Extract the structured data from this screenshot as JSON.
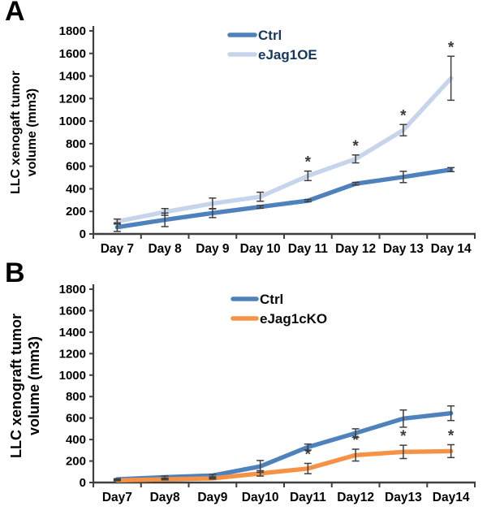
{
  "panels": [
    {
      "label": "A"
    },
    {
      "label": "B"
    }
  ],
  "chart_data": [
    {
      "type": "line",
      "title": "",
      "xlabel": "",
      "ylabel": "LLC xenogaft tumor volume (mm3)",
      "ylabel_lines": [
        "LLC xenogaft tumor",
        "volume (mm3)"
      ],
      "ylim": [
        0,
        1800
      ],
      "yticks": [
        0,
        200,
        400,
        600,
        800,
        1000,
        1200,
        1400,
        1600,
        1800
      ],
      "grid": false,
      "legend_position": "top-center",
      "sig_marker": "*",
      "categories": [
        "Day 7",
        "Day 8",
        "Day 9",
        "Day 10",
        "Day 11",
        "Day 12",
        "Day 13",
        "Day 14"
      ],
      "series": [
        {
          "name": "Ctrl",
          "color": "#4F81BD",
          "values": [
            60,
            125,
            185,
            240,
            295,
            445,
            505,
            570
          ],
          "errors": [
            38,
            60,
            40,
            12,
            10,
            12,
            50,
            18
          ],
          "sig_indexes": []
        },
        {
          "name": "eJag1OE",
          "color": "#C6D5EC",
          "values": [
            110,
            195,
            270,
            330,
            515,
            665,
            920,
            1380
          ],
          "errors": [
            22,
            30,
            48,
            40,
            42,
            35,
            50,
            195
          ],
          "sig_indexes": [
            4,
            5,
            6,
            7
          ]
        }
      ]
    },
    {
      "type": "line",
      "title": "",
      "xlabel": "",
      "ylabel": "LLC xenograft tumor volume (mm3)",
      "ylabel_lines": [
        "LLC xenograft tumor",
        "volume (mm3)"
      ],
      "ylim": [
        0,
        1800
      ],
      "yticks": [
        0,
        200,
        400,
        600,
        800,
        1000,
        1200,
        1400,
        1600,
        1800
      ],
      "grid": false,
      "legend_position": "top-center",
      "sig_marker": "*",
      "categories": [
        "Day7",
        "Day8",
        "Day9",
        "Day10",
        "Day11",
        "Day12",
        "Day13",
        "Day14"
      ],
      "series": [
        {
          "name": "Ctrl",
          "color": "#4F81BD",
          "values": [
            30,
            50,
            65,
            150,
            330,
            460,
            595,
            645
          ],
          "errors": [
            5,
            10,
            12,
            55,
            28,
            40,
            80,
            68
          ],
          "sig_indexes": []
        },
        {
          "name": "eJag1cKO",
          "color": "#F59245",
          "values": [
            20,
            30,
            38,
            85,
            130,
            255,
            285,
            292
          ],
          "errors": [
            4,
            5,
            6,
            25,
            48,
            55,
            62,
            60
          ],
          "sig_indexes": [
            4,
            5,
            6,
            7
          ]
        }
      ]
    }
  ],
  "style_colors": {
    "axis": "#3F3F3F",
    "error_bar": "#3F3F3F",
    "sig_marker": "#3A3A3A",
    "legend_text_a": "#17375D",
    "legend_text_b": "#0A0A0A",
    "tick_text": "#000000"
  }
}
